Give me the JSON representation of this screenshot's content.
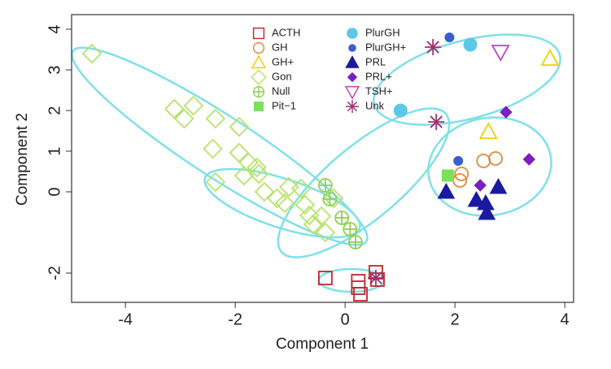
{
  "chart_data": {
    "type": "scatter",
    "xlabel": "Component 1",
    "ylabel": "Component 2",
    "xlim": [
      -4.98,
      4.16
    ],
    "ylim": [
      -2.72,
      4.36
    ],
    "xticks": [
      -4,
      -2,
      0,
      2,
      4
    ],
    "yticks": [
      -2,
      0,
      1,
      2,
      3,
      4
    ],
    "series": [
      {
        "name": "ACTH",
        "color": "#c0272d",
        "marker": "square-open",
        "x": [
          -0.36,
          0.24,
          0.24,
          0.28,
          0.56,
          0.59
        ],
        "y": [
          -2.12,
          -2.2,
          -2.36,
          -2.52,
          -1.98,
          -2.16
        ]
      },
      {
        "name": "GH",
        "color": "#e08a3c",
        "marker": "circle-open",
        "x": [
          2.12,
          2.09,
          2.52,
          2.74
        ],
        "y": [
          0.44,
          0.28,
          0.76,
          0.82
        ]
      },
      {
        "name": "GH+",
        "color": "#f0d000",
        "marker": "triangle-open",
        "x": [
          3.73,
          2.61
        ],
        "y": [
          3.28,
          1.48
        ]
      },
      {
        "name": "Gon",
        "color": "#b7e36b",
        "marker": "diamond-open",
        "x": [
          -4.61,
          -3.11,
          -2.76,
          -2.93,
          -2.36,
          -1.93,
          -2.41,
          -1.93,
          -2.36,
          -1.76,
          -1.61,
          -1.84,
          -1.47,
          -1.24,
          -1.02,
          -0.8,
          -1.1,
          -0.73,
          -0.65,
          -0.58,
          -0.36,
          -0.43,
          -0.21,
          -1.57
        ],
        "y": [
          3.4,
          2.04,
          2.12,
          1.8,
          1.8,
          1.6,
          1.06,
          0.96,
          0.24,
          0.72,
          0.6,
          0.4,
          0,
          -0.16,
          0.12,
          0.08,
          -0.28,
          -0.32,
          -0.58,
          -0.8,
          -1.0,
          -0.6,
          -0.16,
          0.44
        ]
      },
      {
        "name": "Null",
        "color": "#8fd14f",
        "marker": "circle-plus",
        "x": [
          -0.36,
          -0.28,
          -0.06,
          0.09,
          0.19
        ],
        "y": [
          0.16,
          -0.18,
          -0.64,
          -0.92,
          -1.24
        ]
      },
      {
        "name": "Pit−1",
        "color": "#7be05a",
        "marker": "square-filled",
        "x": [
          1.87
        ],
        "y": [
          0.4
        ]
      },
      {
        "name": "PlurGH",
        "color": "#5bc8e8",
        "marker": "circle-filled",
        "x": [
          2.28,
          1.01
        ],
        "y": [
          3.62,
          2.0
        ]
      },
      {
        "name": "PlurGH+",
        "color": "#3a5fcd",
        "marker": "dot-filled",
        "x": [
          1.9,
          2.06
        ],
        "y": [
          3.8,
          0.76
        ]
      },
      {
        "name": "PRL",
        "color": "#1a1aa0",
        "marker": "triangle-filled",
        "x": [
          1.84,
          2.39,
          2.56,
          2.79,
          2.58
        ],
        "y": [
          0,
          -0.2,
          -0.28,
          0.12,
          -0.52
        ]
      },
      {
        "name": "PRL+",
        "color": "#7a1fc0",
        "marker": "diamond-filled",
        "x": [
          2.93,
          3.35,
          2.46
        ],
        "y": [
          1.96,
          0.8,
          0.16
        ]
      },
      {
        "name": "TSH+",
        "color": "#c040c0",
        "marker": "triangle-down-open",
        "x": [
          2.83
        ],
        "y": [
          3.44
        ]
      },
      {
        "name": "Unk",
        "color": "#a0306f",
        "marker": "asterisk",
        "x": [
          1.6,
          1.66,
          0.56
        ],
        "y": [
          3.56,
          1.72,
          -2.12
        ]
      }
    ]
  }
}
